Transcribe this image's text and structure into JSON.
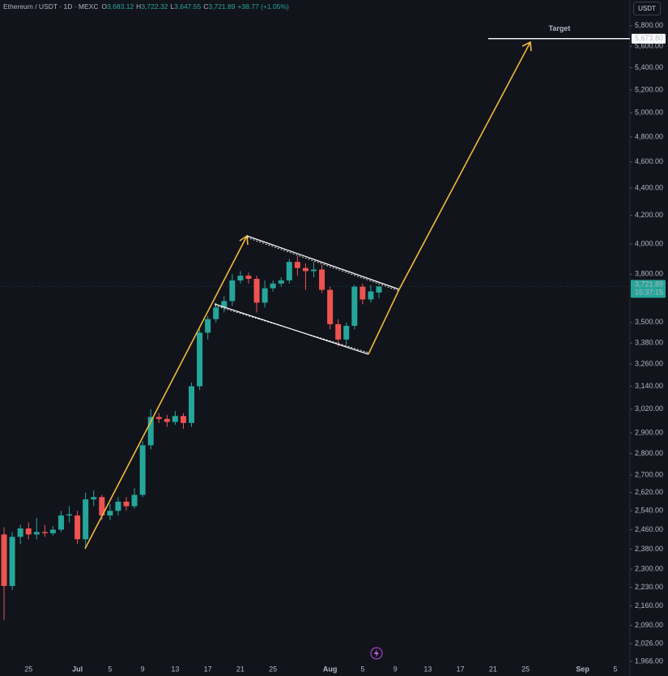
{
  "chart_data": {
    "type": "candlestick",
    "header": {
      "symbol": "Ethereum / USDT · 1D · MEXC",
      "fields": [
        {
          "key": "O",
          "value": "3,683.12"
        },
        {
          "key": "H",
          "value": "3,722.32"
        },
        {
          "key": "L",
          "value": "3,647.55"
        },
        {
          "key": "C",
          "value": "3,721.89"
        }
      ],
      "change": "+38.77 (+1.05%)"
    },
    "currency": "USDT",
    "log_scale": true,
    "up_color": "#26a69a",
    "down_color": "#ef5350",
    "ylim": [
      1963,
      6060
    ],
    "yticks": [
      {
        "value": 5800,
        "label": "5,800.00"
      },
      {
        "value": 5600,
        "label": "5,600.00"
      },
      {
        "value": 5400,
        "label": "5,400.00"
      },
      {
        "value": 5200,
        "label": "5,200.00"
      },
      {
        "value": 5000,
        "label": "5,000.00"
      },
      {
        "value": 4800,
        "label": "4,800.00"
      },
      {
        "value": 4600,
        "label": "4,600.00"
      },
      {
        "value": 4400,
        "label": "4,400.00"
      },
      {
        "value": 4200,
        "label": "4,200.00"
      },
      {
        "value": 4000,
        "label": "4,000.00"
      },
      {
        "value": 3800,
        "label": "3,800.00"
      },
      {
        "value": 3500,
        "label": "3,500.00"
      },
      {
        "value": 3380,
        "label": "3,380.00"
      },
      {
        "value": 3260,
        "label": "3,260.00"
      },
      {
        "value": 3140,
        "label": "3,140.00"
      },
      {
        "value": 3020,
        "label": "3,020.00"
      },
      {
        "value": 2900,
        "label": "2,900.00"
      },
      {
        "value": 2800,
        "label": "2,800.00"
      },
      {
        "value": 2700,
        "label": "2,700.00"
      },
      {
        "value": 2620,
        "label": "2,620.00"
      },
      {
        "value": 2540,
        "label": "2,540.00"
      },
      {
        "value": 2460,
        "label": "2,460.00"
      },
      {
        "value": 2380,
        "label": "2,380.00"
      },
      {
        "value": 2300,
        "label": "2,300.00"
      },
      {
        "value": 2230,
        "label": "2,230.00"
      },
      {
        "value": 2160,
        "label": "2,160.00"
      },
      {
        "value": 2090,
        "label": "2,090.00"
      },
      {
        "value": 2026,
        "label": "2,026.00"
      },
      {
        "value": 1966,
        "label": "1,966.00"
      }
    ],
    "xlim": [
      -0.5,
      76.8
    ],
    "xticks": [
      {
        "value": 3,
        "label": "25"
      },
      {
        "value": 9,
        "label": "Jul"
      },
      {
        "value": 13,
        "label": "5"
      },
      {
        "value": 17,
        "label": "9"
      },
      {
        "value": 21,
        "label": "13"
      },
      {
        "value": 25,
        "label": "17"
      },
      {
        "value": 29,
        "label": "21"
      },
      {
        "value": 33,
        "label": "25"
      },
      {
        "value": 40,
        "label": "Aug"
      },
      {
        "value": 44,
        "label": "5"
      },
      {
        "value": 48,
        "label": "9"
      },
      {
        "value": 52,
        "label": "13"
      },
      {
        "value": 56,
        "label": "17"
      },
      {
        "value": 60,
        "label": "21"
      },
      {
        "value": 64,
        "label": "25"
      },
      {
        "value": 71,
        "label": "Sep"
      },
      {
        "value": 75,
        "label": "5"
      }
    ],
    "open": [
      2440,
      2235,
      2430,
      2465,
      2440,
      2450,
      2445,
      2460,
      2520,
      2520,
      2420,
      2590,
      2600,
      2520,
      2540,
      2580,
      2560,
      2610,
      2840,
      2980,
      2970,
      2955,
      2985,
      2950,
      3140,
      3440,
      3520,
      3590,
      3630,
      3760,
      3790,
      3770,
      3620,
      3710,
      3740,
      3760,
      3880,
      3840,
      3820,
      3830,
      3700,
      3490,
      3400,
      3480,
      3720,
      3640,
      3683.12
    ],
    "high": [
      2470,
      2450,
      2480,
      2490,
      2510,
      2480,
      2475,
      2540,
      2560,
      2540,
      2620,
      2630,
      2610,
      2570,
      2600,
      2600,
      2640,
      2860,
      3020,
      3000,
      2990,
      3010,
      3000,
      3160,
      3460,
      3540,
      3620,
      3660,
      3800,
      3820,
      3810,
      3790,
      3760,
      3760,
      3780,
      3900,
      3920,
      3870,
      3880,
      3860,
      3720,
      3520,
      3500,
      3730,
      3740,
      3730,
      3722.32
    ],
    "low": [
      2110,
      2220,
      2400,
      2420,
      2420,
      2430,
      2435,
      2450,
      2490,
      2400,
      2390,
      2560,
      2500,
      2500,
      2520,
      2540,
      2550,
      2600,
      2820,
      2950,
      2930,
      2940,
      2920,
      2930,
      3120,
      3400,
      3500,
      3560,
      3600,
      3740,
      3740,
      3560,
      3590,
      3690,
      3720,
      3740,
      3790,
      3700,
      3780,
      3680,
      3460,
      3360,
      3370,
      3460,
      3610,
      3620,
      3647.55
    ],
    "close": [
      2235,
      2430,
      2465,
      2440,
      2450,
      2445,
      2460,
      2520,
      2525,
      2420,
      2590,
      2600,
      2520,
      2540,
      2580,
      2560,
      2610,
      2840,
      2980,
      2970,
      2955,
      2985,
      2950,
      3140,
      3440,
      3520,
      3590,
      3630,
      3760,
      3790,
      3770,
      3620,
      3710,
      3740,
      3760,
      3880,
      3840,
      3820,
      3830,
      3700,
      3490,
      3400,
      3480,
      3720,
      3640,
      3690,
      3721.89
    ],
    "last_price": {
      "value": 3721.89,
      "label": "3,721.89",
      "countdown": "15:37:15"
    },
    "target": {
      "value": 5673.8,
      "label": "5,673.80",
      "text": "Target"
    }
  }
}
